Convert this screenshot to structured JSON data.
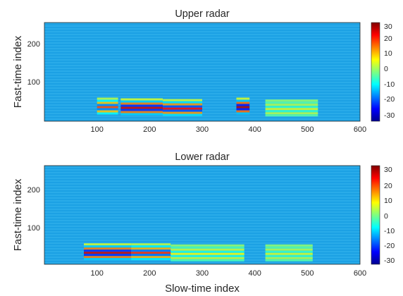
{
  "figure": {
    "xlabel": "Slow-time index"
  },
  "chart_data": [
    {
      "type": "heatmap",
      "title": "Upper radar",
      "xlabel": "",
      "ylabel": "Fast-time index",
      "xlim": [
        0,
        600
      ],
      "ylim": [
        0,
        260
      ],
      "xticks": [
        100,
        200,
        300,
        400,
        500,
        600
      ],
      "yticks": [
        100,
        200
      ],
      "colorbar": {
        "range": [
          -33,
          33
        ],
        "ticks": [
          30,
          20,
          10,
          0,
          -10,
          -20,
          -30
        ]
      },
      "colormap": [
        "#00008f",
        "#0000ff",
        "#00ffff",
        "#ffff00",
        "#ff0000",
        "#800000"
      ],
      "background_color": "#1ea6e8",
      "description_regions": [
        {
          "x_start": 100,
          "x_end": 140,
          "y_center": 40,
          "peak": 20
        },
        {
          "x_start": 145,
          "x_end": 225,
          "y_center": 38,
          "peak": 28
        },
        {
          "x_start": 225,
          "x_end": 300,
          "y_center": 36,
          "peak": 25
        },
        {
          "x_start": 365,
          "x_end": 390,
          "y_center": 40,
          "peak": 30
        },
        {
          "x_start": 420,
          "x_end": 520,
          "y_center": 35,
          "peak": 6
        }
      ]
    },
    {
      "type": "heatmap",
      "title": "Lower radar",
      "xlabel": "Slow-time index",
      "ylabel": "Fast-time index",
      "xlim": [
        0,
        600
      ],
      "ylim": [
        0,
        260
      ],
      "xticks": [
        100,
        200,
        300,
        400,
        500,
        600
      ],
      "yticks": [
        100,
        200
      ],
      "colorbar": {
        "range": [
          -33,
          33
        ],
        "ticks": [
          30,
          20,
          10,
          0,
          -10,
          -20,
          -30
        ]
      },
      "colormap": [
        "#00008f",
        "#0000ff",
        "#00ffff",
        "#ffff00",
        "#ff0000",
        "#800000"
      ],
      "background_color": "#1ea6e8",
      "description_regions": [
        {
          "x_start": 75,
          "x_end": 165,
          "y_center": 33,
          "peak": 28
        },
        {
          "x_start": 165,
          "x_end": 240,
          "y_center": 33,
          "peak": 22
        },
        {
          "x_start": 240,
          "x_end": 380,
          "y_center": 30,
          "peak": 8
        },
        {
          "x_start": 420,
          "x_end": 510,
          "y_center": 30,
          "peak": 6
        }
      ]
    }
  ]
}
